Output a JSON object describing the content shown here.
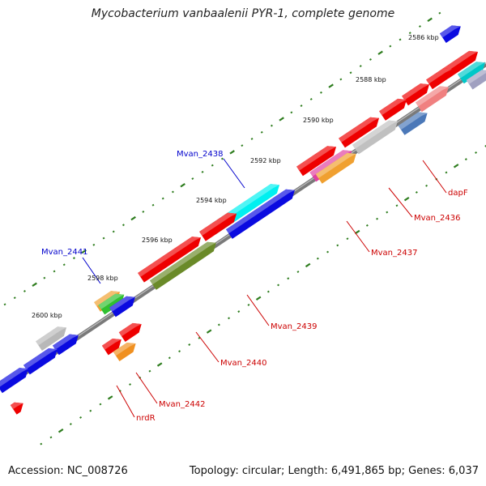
{
  "title": "Mycobacterium vanbaalenii PYR-1, complete genome",
  "footer": {
    "accession": "Accession: NC_008726",
    "summary": "Topology: circular; Length: 6,491,865 bp; Genes: 6,037"
  },
  "ruler": [
    {
      "label": "2586 kbp"
    },
    {
      "label": "2588 kbp"
    },
    {
      "label": "2590 kbp"
    },
    {
      "label": "2592 kbp"
    },
    {
      "label": "2594 kbp"
    },
    {
      "label": "2596 kbp"
    },
    {
      "label": "2598 kbp"
    },
    {
      "label": "2600 kbp"
    }
  ],
  "gene_labels": [
    {
      "text": "Mvan_2438",
      "color": "#0000cc"
    },
    {
      "text": "Mvan_2441",
      "color": "#0000cc"
    },
    {
      "text": "dapF",
      "color": "#cc0000"
    },
    {
      "text": "Mvan_2436",
      "color": "#cc0000"
    },
    {
      "text": "Mvan_2437",
      "color": "#cc0000"
    },
    {
      "text": "Mvan_2439",
      "color": "#cc0000"
    },
    {
      "text": "Mvan_2440",
      "color": "#cc0000"
    },
    {
      "text": "Mvan_2442",
      "color": "#cc0000"
    },
    {
      "text": "nrdR",
      "color": "#cc0000"
    }
  ],
  "colors": {
    "backbone": "#777777",
    "tick": "#2e7d1e",
    "forward_cds": "#0000ee",
    "reverse_cds": "#ee0000"
  }
}
